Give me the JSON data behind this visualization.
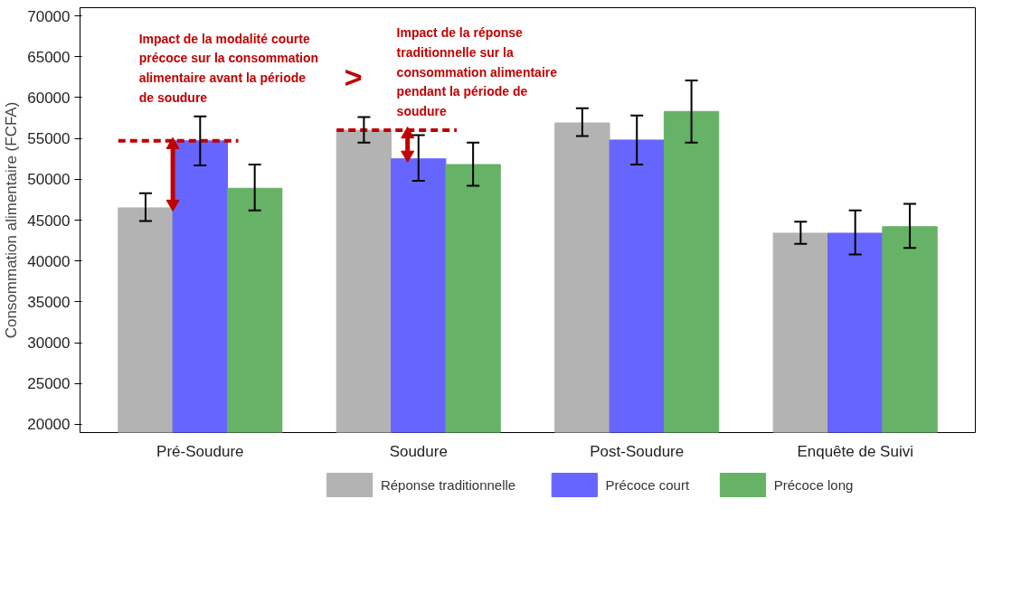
{
  "chart_data": {
    "type": "bar",
    "ylabel": "Consommation alimentaire (FCFA)",
    "categories": [
      "Pré-Soudure",
      "Soudure",
      "Post-Soudure",
      "Enquête de Suivi"
    ],
    "series": [
      {
        "name": "Réponse traditionnelle",
        "color": "#b3b3b3",
        "values": [
          46500,
          56000,
          56900,
          43400
        ],
        "errors": [
          [
            44900,
            48300
          ],
          [
            54500,
            57600
          ],
          [
            55300,
            58700
          ],
          [
            42100,
            44800
          ]
        ]
      },
      {
        "name": "Précoce court",
        "color": "#6666ff",
        "values": [
          54700,
          52500,
          54800,
          43400
        ],
        "errors": [
          [
            51700,
            57700
          ],
          [
            49800,
            55400
          ],
          [
            51800,
            57800
          ],
          [
            40800,
            46200
          ]
        ]
      },
      {
        "name": "Précoce long",
        "color": "#66b266",
        "values": [
          48900,
          51800,
          58300,
          44200
        ],
        "errors": [
          [
            46200,
            51800
          ],
          [
            49200,
            54500
          ],
          [
            54500,
            62100
          ],
          [
            41600,
            47000
          ]
        ]
      }
    ],
    "ylim": [
      19000,
      71000
    ],
    "yticks": [
      20000,
      25000,
      30000,
      35000,
      40000,
      45000,
      50000,
      55000,
      60000,
      65000,
      70000
    ],
    "grid": false,
    "legend": "bottom",
    "ref_lines": [
      {
        "axis": "y",
        "value": 54700,
        "color": "#c00000",
        "line_style": "dashed"
      },
      {
        "axis": "y",
        "value": 56000,
        "color": "#c00000",
        "line_style": "dashed"
      }
    ],
    "annotations": [
      "Impact de la modalité courte précoce sur la consommation alimentaire avant la période de soudure",
      ">",
      "Impact de la réponse traditionnelle sur la consommation alimentaire pendant la période de soudure"
    ]
  }
}
